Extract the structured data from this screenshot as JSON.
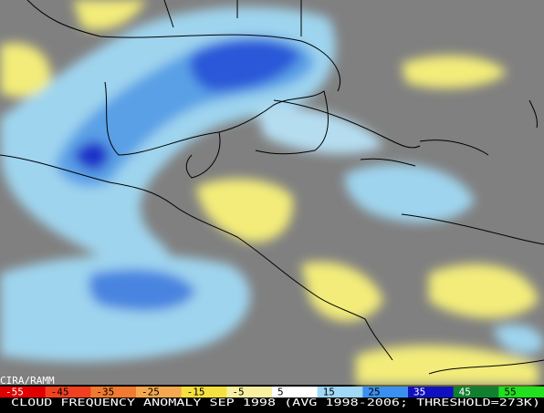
{
  "credit": "CIRA/RAMM",
  "colorbar": {
    "labels": [
      "-55",
      "-45",
      "-35",
      "-25",
      "-15",
      "-5",
      "5",
      "15",
      "25",
      "35",
      "45",
      "55"
    ]
  },
  "caption": "CLOUD FREQUENCY ANOMALY SEP 1998 (AVG 1998-2006; THRESHOLD=273K)"
}
